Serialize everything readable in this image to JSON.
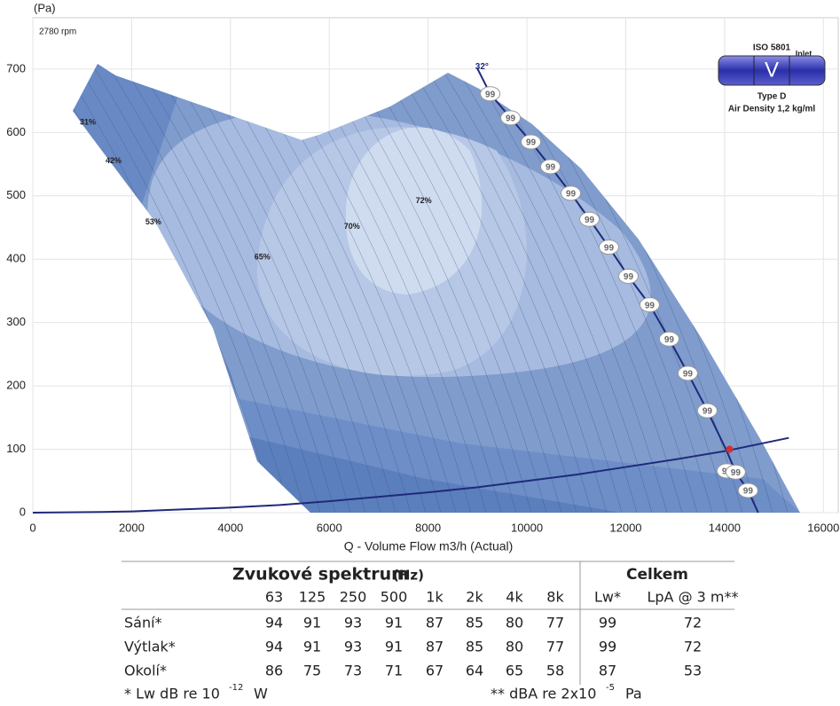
{
  "chart_data": {
    "type": "fan-map",
    "y_label": "(Pa)",
    "speed": "2780 rpm",
    "x_label": "Q - Volume Flow m3/h (Actual)",
    "xlim": [
      0,
      16300
    ],
    "ylim": [
      0,
      781
    ],
    "xticks": [
      0,
      2000,
      4000,
      6000,
      8000,
      10000,
      12000,
      14000,
      16000
    ],
    "yticks": [
      0,
      100,
      200,
      300,
      400,
      500,
      600,
      700
    ],
    "grid": true,
    "series": [
      {
        "name": "32°",
        "color": "#1f2a7a",
        "x": [
          8990,
          9256,
          9668,
          10081,
          10475,
          10888,
          11265,
          11659,
          12054,
          12484,
          12879,
          13256,
          13650,
          14045,
          14224,
          14475,
          14680
        ],
        "values": [
          702,
          661,
          623,
          585,
          546,
          504,
          463,
          419,
          373,
          328,
          274,
          220,
          161,
          97,
          64,
          35,
          0
        ]
      },
      {
        "color": "#1f2a7a",
        "x": [
          0,
          1400,
          2000,
          3000,
          4000,
          5000,
          6000,
          7000,
          8000,
          9000,
          10000,
          11000,
          12000,
          13000,
          14000,
          15300
        ],
        "values": [
          0,
          1,
          2,
          5,
          8,
          12,
          18,
          25,
          32,
          40,
          50,
          60,
          72,
          84,
          97,
          118
        ]
      }
    ],
    "operating_point": {
      "x": 14100,
      "y": 100,
      "color": "#d03030"
    },
    "annotations": [
      {
        "text": "31%",
        "x": 951,
        "y": 616
      },
      {
        "text": "42%",
        "x": 1471,
        "y": 555
      },
      {
        "text": "53%",
        "x": 2278,
        "y": 458
      },
      {
        "text": "65%",
        "x": 4484,
        "y": 403
      },
      {
        "text": "70%",
        "x": 6296,
        "y": 451
      },
      {
        "text": "72%",
        "x": 7749,
        "y": 492
      }
    ],
    "noise_labels": {
      "x": [
        9256,
        9668,
        10081,
        10475,
        10888,
        11265,
        11659,
        12054,
        12484,
        12879,
        13256,
        13650,
        14045,
        14224,
        14475
      ],
      "y": [
        661,
        623,
        585,
        546,
        504,
        463,
        419,
        373,
        328,
        274,
        220,
        161,
        66,
        64,
        35
      ],
      "values": [
        99,
        99,
        99,
        99,
        99,
        99,
        99,
        99,
        99,
        99,
        99,
        99,
        99,
        99,
        99
      ]
    },
    "legend_box": {
      "standard": "ISO 5801",
      "inlet": "Inlet",
      "symbol": "V",
      "type": "Type D",
      "density": "Air Density 1,2 kg/ml"
    }
  },
  "table": {
    "title": "Zvukové spektrum",
    "unit": "(Hz)",
    "total": "Celkem",
    "header": [
      "63",
      "125",
      "250",
      "500",
      "1k",
      "2k",
      "4k",
      "8k",
      "Lw*",
      "LpA @ 3 m**"
    ],
    "rows": [
      [
        "Sání*",
        94,
        91,
        93,
        91,
        87,
        85,
        80,
        77,
        99,
        72
      ],
      [
        "Výtlak*",
        94,
        91,
        93,
        91,
        87,
        85,
        80,
        77,
        99,
        72
      ],
      [
        "Okolí*",
        86,
        75,
        73,
        71,
        67,
        64,
        65,
        58,
        87,
        53
      ]
    ],
    "footnote1": {
      "text": "* Lw dB re 10",
      "sup": "-12",
      "unit": "W"
    },
    "footnote2": {
      "text": "** dBA re 2x10",
      "sup": "-5",
      "unit": "Pa"
    }
  }
}
